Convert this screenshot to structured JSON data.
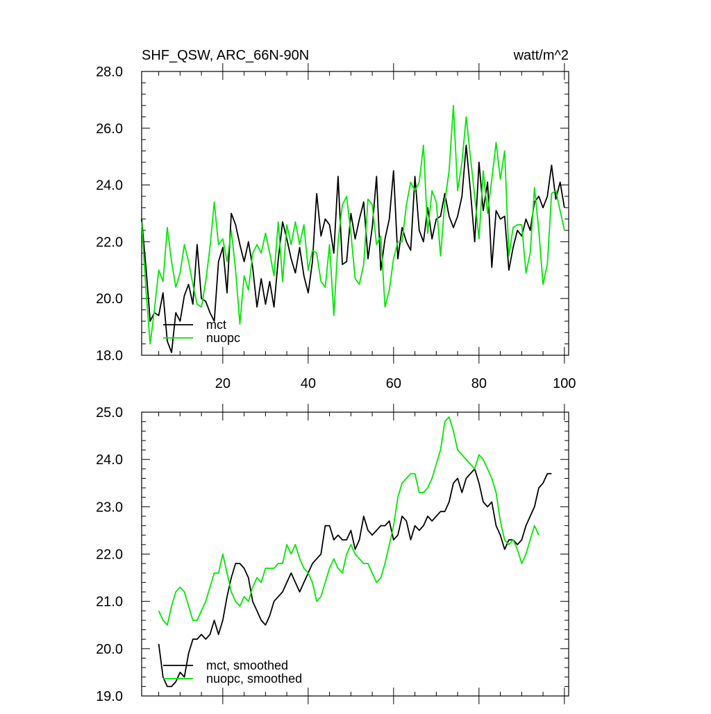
{
  "chart_data": [
    {
      "type": "line",
      "title_left": "SHF_QSW, ARC_66N-90N",
      "title_right": "watt/m^2",
      "xlim": [
        1,
        101
      ],
      "ylim": [
        18.0,
        28.0
      ],
      "xticks": [
        20,
        40,
        60,
        80,
        100
      ],
      "yticks": [
        18.0,
        20.0,
        22.0,
        24.0,
        26.0,
        28.0
      ],
      "legend_position": "bottom-left",
      "series": [
        {
          "name": "mct",
          "color": "#000000",
          "x": [
            1,
            2,
            3,
            4,
            5,
            6,
            7,
            8,
            9,
            10,
            11,
            12,
            13,
            14,
            15,
            16,
            17,
            18,
            19,
            20,
            21,
            22,
            23,
            24,
            25,
            26,
            27,
            28,
            29,
            30,
            31,
            32,
            33,
            34,
            35,
            36,
            37,
            38,
            39,
            40,
            41,
            42,
            43,
            44,
            45,
            46,
            47,
            48,
            49,
            50,
            51,
            52,
            53,
            54,
            55,
            56,
            57,
            58,
            59,
            60,
            61,
            62,
            63,
            64,
            65,
            66,
            67,
            68,
            69,
            70,
            71,
            72,
            73,
            74,
            75,
            76,
            77,
            78,
            79,
            80,
            81,
            82,
            83,
            84,
            85,
            86,
            87,
            88,
            89,
            90,
            91,
            92,
            93,
            94,
            95,
            96,
            97,
            98,
            99,
            100,
            101
          ],
          "values": [
            22.8,
            21.1,
            19.2,
            19.5,
            19.4,
            20.2,
            18.5,
            18.1,
            19.5,
            19.2,
            20.1,
            20.5,
            19.8,
            21.9,
            20.0,
            19.9,
            19.5,
            19.2,
            21.3,
            21.8,
            20.2,
            23.0,
            22.6,
            21.9,
            21.3,
            22.0,
            21.1,
            19.7,
            20.7,
            19.8,
            20.6,
            19.7,
            21.4,
            22.7,
            22.1,
            21.4,
            20.9,
            21.8,
            20.8,
            20.2,
            21.3,
            23.7,
            22.2,
            22.8,
            22.6,
            21.6,
            24.3,
            21.2,
            21.3,
            23.0,
            22.1,
            22.8,
            23.4,
            21.4,
            22.5,
            24.3,
            21.0,
            22.1,
            22.8,
            24.5,
            21.4,
            22.5,
            22.0,
            21.7,
            24.3,
            22.4,
            22.0,
            23.2,
            22.1,
            22.8,
            22.9,
            23.7,
            22.9,
            22.5,
            22.9,
            23.6,
            25.4,
            23.8,
            22.0,
            24.8,
            23.1,
            24.1,
            21.1,
            23.1,
            22.8,
            22.9,
            21.0,
            21.8,
            22.4,
            22.2,
            22.8,
            22.4,
            23.4,
            23.6,
            23.2,
            23.6,
            24.7,
            23.5,
            24.1,
            23.2,
            null
          ]
        },
        {
          "name": "nuopc",
          "color": "#00e600",
          "x": [
            1,
            2,
            3,
            4,
            5,
            6,
            7,
            8,
            9,
            10,
            11,
            12,
            13,
            14,
            15,
            16,
            17,
            18,
            19,
            20,
            21,
            22,
            23,
            24,
            25,
            26,
            27,
            28,
            29,
            30,
            31,
            32,
            33,
            34,
            35,
            36,
            37,
            38,
            39,
            40,
            41,
            42,
            43,
            44,
            45,
            46,
            47,
            48,
            49,
            50,
            51,
            52,
            53,
            54,
            55,
            56,
            57,
            58,
            59,
            60,
            61,
            62,
            63,
            64,
            65,
            66,
            67,
            68,
            69,
            70,
            71,
            72,
            73,
            74,
            75,
            76,
            77,
            78,
            79,
            80,
            81,
            82,
            83,
            84,
            85,
            86,
            87,
            88,
            89,
            90,
            91,
            92,
            93,
            94,
            95,
            96,
            97,
            98,
            99,
            100,
            101
          ],
          "values": [
            22.7,
            20.3,
            18.4,
            19.6,
            21.0,
            20.6,
            22.5,
            21.3,
            20.4,
            20.9,
            21.9,
            21.3,
            20.5,
            19.8,
            19.7,
            20.6,
            21.8,
            23.4,
            21.9,
            22.1,
            21.3,
            22.4,
            21.0,
            19.1,
            20.8,
            20.3,
            21.6,
            21.9,
            21.6,
            22.3,
            21.6,
            20.8,
            22.7,
            20.6,
            22.6,
            21.9,
            22.7,
            21.9,
            22.6,
            21.0,
            21.7,
            21.6,
            20.6,
            20.4,
            21.9,
            19.4,
            22.0,
            23.3,
            23.6,
            22.3,
            20.7,
            20.5,
            21.2,
            23.5,
            23.3,
            21.9,
            22.2,
            19.7,
            20.3,
            21.4,
            22.0,
            22.0,
            23.3,
            24.1,
            23.8,
            24.1,
            25.4,
            22.3,
            23.8,
            23.4,
            21.5,
            23.4,
            24.5,
            26.8,
            23.8,
            24.8,
            26.4,
            25.0,
            23.6,
            22.1,
            24.5,
            23.0,
            24.2,
            25.5,
            24.2,
            25.2,
            21.5,
            22.5,
            22.6,
            22.6,
            20.9,
            21.6,
            23.9,
            22.4,
            20.5,
            21.2,
            23.7,
            23.8,
            23.1,
            22.4,
            null
          ]
        }
      ]
    },
    {
      "type": "line",
      "xlim": [
        1,
        101
      ],
      "ylim": [
        19.0,
        25.0
      ],
      "xticks": [
        20,
        40,
        60,
        80,
        100
      ],
      "yticks": [
        19.0,
        20.0,
        21.0,
        22.0,
        23.0,
        24.0,
        25.0
      ],
      "legend_position": "bottom-left",
      "series": [
        {
          "name": "mct, smoothed",
          "color": "#000000",
          "x": [
            5,
            6,
            7,
            8,
            9,
            10,
            11,
            12,
            13,
            14,
            15,
            16,
            17,
            18,
            19,
            20,
            21,
            22,
            23,
            24,
            25,
            26,
            27,
            28,
            29,
            30,
            31,
            32,
            33,
            34,
            35,
            36,
            37,
            38,
            39,
            40,
            41,
            42,
            43,
            44,
            45,
            46,
            47,
            48,
            49,
            50,
            51,
            52,
            53,
            54,
            55,
            56,
            57,
            58,
            59,
            60,
            61,
            62,
            63,
            64,
            65,
            66,
            67,
            68,
            69,
            70,
            71,
            72,
            73,
            74,
            75,
            76,
            77,
            78,
            79,
            80,
            81,
            82,
            83,
            84,
            85,
            86,
            87,
            88,
            89,
            90,
            91,
            92,
            93,
            94,
            95,
            96,
            97,
            98,
            99
          ],
          "values": [
            20.1,
            19.4,
            19.2,
            19.2,
            19.3,
            19.5,
            19.4,
            19.9,
            20.2,
            20.2,
            20.3,
            20.2,
            20.3,
            20.6,
            20.3,
            20.6,
            21.1,
            21.5,
            21.8,
            21.8,
            21.7,
            21.5,
            21.0,
            20.8,
            20.6,
            20.5,
            20.7,
            21.0,
            21.1,
            21.2,
            21.4,
            21.6,
            21.4,
            21.2,
            21.4,
            21.6,
            21.8,
            21.9,
            22.0,
            22.6,
            22.6,
            22.3,
            22.4,
            22.3,
            22.3,
            22.5,
            22.1,
            22.3,
            22.8,
            22.5,
            22.4,
            22.5,
            22.6,
            22.6,
            22.7,
            22.3,
            22.4,
            22.8,
            22.7,
            22.3,
            22.6,
            22.5,
            22.6,
            22.8,
            22.7,
            22.8,
            22.9,
            22.9,
            23.1,
            23.5,
            23.6,
            23.3,
            23.6,
            23.7,
            23.8,
            23.5,
            23.1,
            23.0,
            23.1,
            22.6,
            22.4,
            22.1,
            22.3,
            22.3,
            22.2,
            22.3,
            22.6,
            22.8,
            23.0,
            23.4,
            23.5,
            23.7,
            23.7,
            null,
            null
          ]
        },
        {
          "name": "nuopc, smoothed",
          "color": "#00e600",
          "x": [
            5,
            6,
            7,
            8,
            9,
            10,
            11,
            12,
            13,
            14,
            15,
            16,
            17,
            18,
            19,
            20,
            21,
            22,
            23,
            24,
            25,
            26,
            27,
            28,
            29,
            30,
            31,
            32,
            33,
            34,
            35,
            36,
            37,
            38,
            39,
            40,
            41,
            42,
            43,
            44,
            45,
            46,
            47,
            48,
            49,
            50,
            51,
            52,
            53,
            54,
            55,
            56,
            57,
            58,
            59,
            60,
            61,
            62,
            63,
            64,
            65,
            66,
            67,
            68,
            69,
            70,
            71,
            72,
            73,
            74,
            75,
            76,
            77,
            78,
            79,
            80,
            81,
            82,
            83,
            84,
            85,
            86,
            87,
            88,
            89,
            90,
            91,
            92,
            93,
            94,
            95,
            96,
            97,
            98,
            99
          ],
          "values": [
            20.8,
            20.6,
            20.5,
            20.9,
            21.2,
            21.3,
            21.2,
            20.9,
            20.6,
            20.6,
            20.8,
            21.0,
            21.3,
            21.6,
            21.6,
            22.0,
            21.6,
            21.2,
            21.0,
            20.9,
            21.1,
            21.0,
            21.3,
            21.5,
            21.4,
            21.7,
            21.7,
            21.7,
            21.8,
            21.8,
            22.2,
            22.0,
            22.2,
            21.9,
            21.7,
            21.6,
            21.4,
            21.0,
            21.1,
            21.4,
            21.7,
            21.9,
            21.7,
            21.6,
            22.0,
            22.2,
            22.0,
            21.9,
            21.8,
            21.8,
            21.6,
            21.4,
            21.5,
            21.8,
            22.2,
            22.6,
            23.2,
            23.5,
            23.6,
            23.7,
            23.7,
            23.3,
            23.3,
            23.4,
            23.6,
            23.9,
            24.2,
            24.8,
            24.9,
            24.6,
            24.2,
            24.1,
            24.0,
            23.9,
            23.8,
            24.1,
            24.0,
            23.8,
            23.6,
            23.3,
            22.7,
            22.3,
            22.2,
            22.3,
            22.1,
            21.8,
            22.0,
            22.3,
            22.6,
            22.4,
            null,
            null,
            null,
            null,
            null
          ]
        }
      ]
    }
  ]
}
